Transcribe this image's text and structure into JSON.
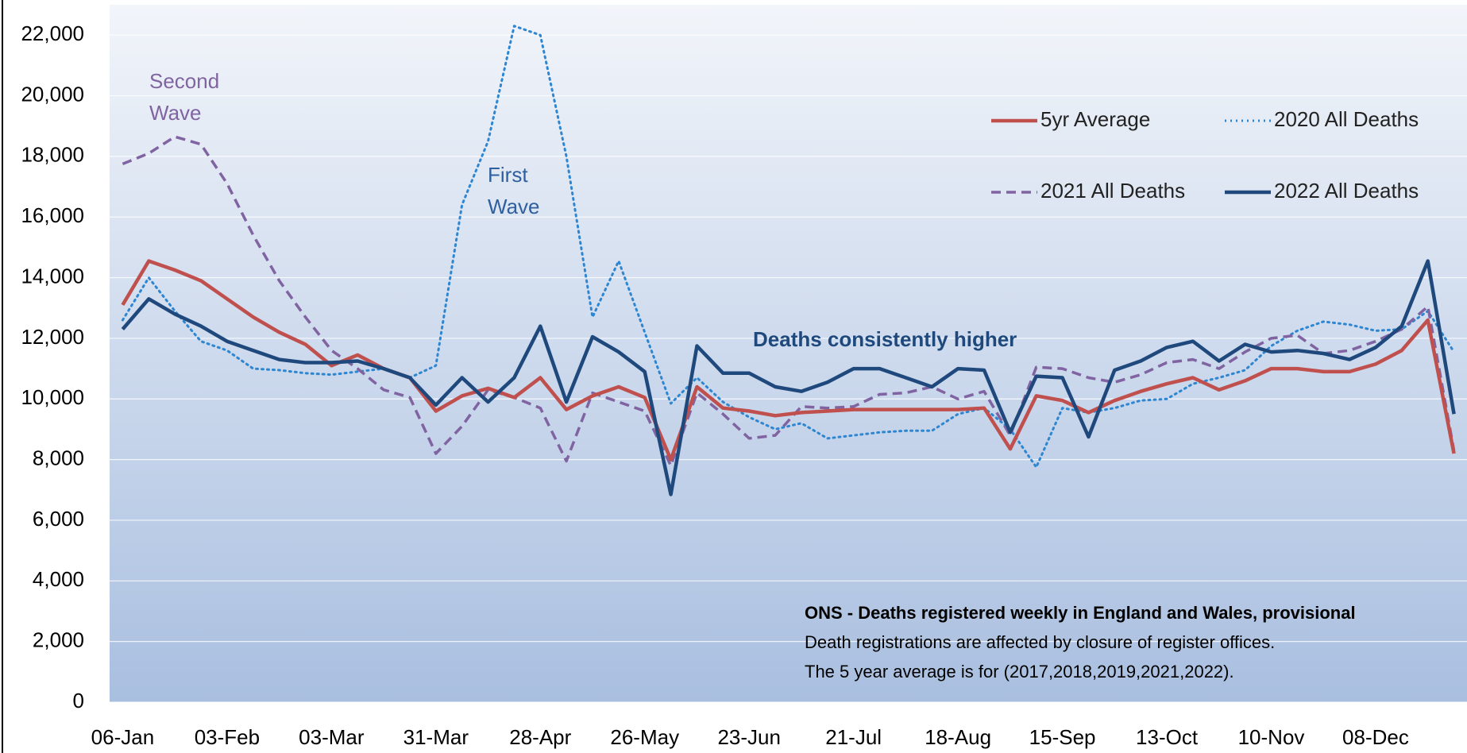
{
  "chart_data": {
    "type": "line",
    "categories": [
      "06-Jan",
      null,
      null,
      null,
      "03-Feb",
      null,
      null,
      null,
      "03-Mar",
      null,
      null,
      null,
      "31-Mar",
      null,
      null,
      null,
      "28-Apr",
      null,
      null,
      null,
      "26-May",
      null,
      null,
      null,
      "23-Jun",
      null,
      null,
      null,
      "21-Jul",
      null,
      null,
      null,
      "18-Aug",
      null,
      null,
      null,
      "15-Sep",
      null,
      null,
      null,
      "13-Oct",
      null,
      null,
      null,
      "10-Nov",
      null,
      null,
      null,
      "08-Dec",
      null,
      null,
      null
    ],
    "series": [
      {
        "name": "5yr Average",
        "color": "#c0504d",
        "style": "solid",
        "values": [
          13100,
          14550,
          14250,
          13900,
          13300,
          12700,
          12200,
          11800,
          11100,
          11450,
          11000,
          10700,
          9600,
          10100,
          10350,
          10050,
          10700,
          9650,
          10100,
          10400,
          10050,
          8000,
          10400,
          9700,
          9600,
          9450,
          9550,
          9600,
          9650,
          9650,
          9650,
          9650,
          9650,
          9700,
          8350,
          10100,
          9950,
          9550,
          9950,
          10250,
          10500,
          10700,
          10300,
          10600,
          11000,
          11000,
          10900,
          10900,
          11150,
          11600,
          12600,
          8200
        ]
      },
      {
        "name": "2020 All Deaths",
        "color": "#2e86d1",
        "style": "dotted",
        "values": [
          12600,
          14000,
          12900,
          11900,
          11600,
          11000,
          10950,
          10850,
          10800,
          10900,
          11000,
          10700,
          11100,
          16400,
          18500,
          22300,
          22000,
          18000,
          12700,
          14550,
          12200,
          9850,
          10700,
          9900,
          9400,
          9000,
          9200,
          8700,
          8800,
          8900,
          8950,
          8950,
          9500,
          9700,
          9000,
          7750,
          9700,
          9550,
          9700,
          9950,
          10000,
          10500,
          10700,
          10950,
          11750,
          12250,
          12550,
          12450,
          12250,
          12300,
          12900,
          11550
        ]
      },
      {
        "name": "2021 All Deaths",
        "color": "#8064a2",
        "style": "dashed",
        "values": [
          17750,
          18100,
          18650,
          18400,
          17100,
          15400,
          13900,
          12700,
          11600,
          11000,
          10300,
          10050,
          8200,
          9100,
          10300,
          10050,
          9700,
          7950,
          10200,
          9900,
          9600,
          7800,
          10200,
          9500,
          8700,
          8800,
          9750,
          9700,
          9750,
          10150,
          10200,
          10400,
          10000,
          10250,
          8800,
          11050,
          11000,
          10700,
          10550,
          10800,
          11200,
          11300,
          11000,
          11550,
          12000,
          12100,
          11500,
          11600,
          11900,
          12300,
          13050,
          8300
        ]
      },
      {
        "name": "2022 All Deaths",
        "color": "#1f497d",
        "style": "solid",
        "values": [
          12300,
          13300,
          12800,
          12400,
          11900,
          11600,
          11300,
          11200,
          11200,
          11250,
          11000,
          10700,
          9800,
          10700,
          9900,
          10700,
          12400,
          9900,
          12050,
          11550,
          10900,
          6850,
          11750,
          10850,
          10850,
          10400,
          10250,
          10550,
          11000,
          11000,
          10700,
          10400,
          11000,
          10950,
          8900,
          10750,
          10700,
          8750,
          10950,
          11250,
          11700,
          11900,
          11250,
          11800,
          11550,
          11600,
          11500,
          11300,
          11700,
          12400,
          14550,
          9500
        ]
      }
    ],
    "ylim": [
      0,
      23000
    ],
    "yticks": [
      0,
      {
        "value": 2000,
        "label": "2,000"
      },
      {
        "value": 4000,
        "label": "4,000"
      },
      {
        "value": 6000,
        "label": "6,000"
      },
      {
        "value": 8000,
        "label": "8,000"
      },
      {
        "value": 10000,
        "label": "10,000"
      },
      {
        "value": 12000,
        "label": "12,000"
      },
      {
        "value": 14000,
        "label": "14,000"
      },
      {
        "value": 16000,
        "label": "16,000"
      },
      {
        "value": 18000,
        "label": "18,000"
      },
      {
        "value": 20000,
        "label": "20,000"
      },
      {
        "value": 22000,
        "label": "22,000"
      }
    ],
    "grid": true,
    "legend": "upper right",
    "annotations": [
      {
        "text": [
          "Second",
          "Wave"
        ],
        "color": "#8064a2",
        "bold": false
      },
      {
        "text": [
          "First",
          "Wave"
        ],
        "color": "#2e5f9e",
        "bold": false
      },
      {
        "text": [
          "Deaths consistently higher"
        ],
        "color": "#1f497d",
        "bold": true
      }
    ],
    "footnote": [
      "ONS - Deaths registered weekly in England and Wales, provisional",
      "Death registrations are affected by closure of register offices.",
      "The 5 year average is for (2017,2018,2019,2021,2022)."
    ]
  }
}
